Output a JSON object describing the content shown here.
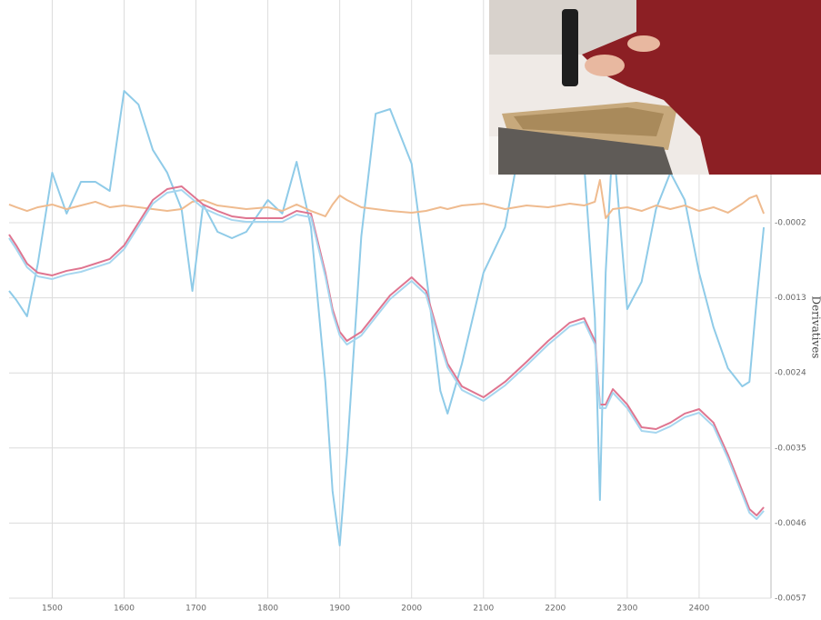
{
  "chart_data": {
    "type": "line",
    "y_label": "Derivatives",
    "x": [
      1440,
      1450,
      1465,
      1480,
      1500,
      1520,
      1540,
      1560,
      1580,
      1600,
      1620,
      1640,
      1660,
      1680,
      1695,
      1710,
      1730,
      1750,
      1770,
      1800,
      1820,
      1840,
      1860,
      1880,
      1890,
      1900,
      1910,
      1930,
      1950,
      1970,
      2000,
      2020,
      2040,
      2050,
      2070,
      2100,
      2130,
      2160,
      2190,
      2220,
      2240,
      2255,
      2262,
      2270,
      2280,
      2300,
      2320,
      2340,
      2360,
      2380,
      2400,
      2420,
      2440,
      2460,
      2470,
      2480,
      2490
    ],
    "xlim": [
      1440,
      2500
    ],
    "xticks": [
      1500,
      1600,
      1700,
      1800,
      1900,
      2000,
      2100,
      2200,
      2300,
      2400
    ],
    "ylim": [
      -0.0057,
      0.003063
    ],
    "yticks": [
      -0.0057,
      -0.0046,
      -0.0035,
      -0.0024,
      -0.0013,
      -0.0002
    ],
    "grid": true,
    "series": [
      {
        "color": "#8fcbe8",
        "values": [
          -0.001198,
          -0.001332,
          -0.001571,
          -0.000799,
          0.000533,
          -6.6e-05,
          0.0004,
          0.0004,
          0.000266,
          0.001731,
          0.001532,
          0.000866,
          0.000533,
          0,
          -0.001198,
          6.7e-05,
          -0.000333,
          -0.000426,
          -0.000333,
          0.000133,
          -6.6e-05,
          0.000693,
          -0.000266,
          -0.00253,
          -0.004128,
          -0.004927,
          -0.003596,
          -0.000399,
          0.001398,
          0.001465,
          0.000666,
          -0.000932,
          -0.002663,
          -0.002996,
          -0.002264,
          -0.000932,
          -0.000266,
          0.001465,
          0.002264,
          0.001731,
          0.000666,
          -0.001598,
          -0.004261,
          -0.000932,
          0.001065,
          -0.001465,
          -0.001065,
          0,
          0.000533,
          0.000133,
          -0.000932,
          -0.001731,
          -0.00233,
          -0.002597,
          -0.00253,
          -0.001332,
          -0.000266
        ]
      },
      {
        "color": "#efbb8f",
        "values": [
          6.7e-05,
          2.7e-05,
          -2.7e-05,
          2.7e-05,
          6.7e-05,
          0,
          5.3e-05,
          0.000107,
          2.7e-05,
          5.3e-05,
          2.7e-05,
          0,
          -2.7e-05,
          0,
          0.000107,
          0.000133,
          5.3e-05,
          2.7e-05,
          0,
          2.7e-05,
          -2.7e-05,
          6.7e-05,
          -2.7e-05,
          -0.000106,
          6.7e-05,
          0.0002,
          0.000133,
          2.7e-05,
          0,
          -2.7e-05,
          -5.3e-05,
          -2.7e-05,
          2.7e-05,
          0,
          5.3e-05,
          8e-05,
          0,
          5.3e-05,
          2.7e-05,
          8e-05,
          5.3e-05,
          0.000107,
          0.000426,
          -0.000133,
          0,
          2.7e-05,
          -2.7e-05,
          5.3e-05,
          0,
          5.3e-05,
          -2.7e-05,
          2.7e-05,
          -5.3e-05,
          8e-05,
          0.00016,
          0.0002,
          -6.6e-05
        ]
      },
      {
        "color": "#df7590",
        "values": [
          -0.000373,
          -0.000533,
          -0.000799,
          -0.000932,
          -0.000972,
          -0.000905,
          -0.000866,
          -0.000799,
          -0.000732,
          -0.000533,
          -0.0002,
          0.000133,
          0.000293,
          0.000333,
          0.0002,
          6.7e-05,
          -2.7e-05,
          -0.000106,
          -0.000133,
          -0.000133,
          -0.000133,
          -2.7e-05,
          -6.6e-05,
          -0.000932,
          -0.001465,
          -0.001798,
          -0.001931,
          -0.001798,
          -0.001531,
          -0.001265,
          -0.000999,
          -0.001198,
          -0.001931,
          -0.002264,
          -0.002597,
          -0.002757,
          -0.00253,
          -0.002237,
          -0.001931,
          -0.001665,
          -0.001598,
          -0.001931,
          -0.002863,
          -0.002863,
          -0.002637,
          -0.002863,
          -0.003196,
          -0.003223,
          -0.003129,
          -0.002996,
          -0.00293,
          -0.003129,
          -0.003596,
          -0.004128,
          -0.004395,
          -0.004488,
          -0.004368
        ]
      },
      {
        "color": "#a6d6ef",
        "values": [
          -0.000426,
          -0.000586,
          -0.000852,
          -0.000985,
          -0.001025,
          -0.000958,
          -0.000919,
          -0.000852,
          -0.000785,
          -0.000586,
          -0.000253,
          8e-05,
          0.00024,
          0.00028,
          0.000147,
          1.4e-05,
          -8e-05,
          -0.000159,
          -0.000186,
          -0.000186,
          -0.000186,
          -8e-05,
          -0.000119,
          -0.000985,
          -0.001518,
          -0.001851,
          -0.001984,
          -0.001851,
          -0.001584,
          -0.001318,
          -0.001052,
          -0.001251,
          -0.001984,
          -0.002317,
          -0.00265,
          -0.00281,
          -0.002583,
          -0.00229,
          -0.001984,
          -0.001718,
          -0.001651,
          -0.001984,
          -0.002916,
          -0.002916,
          -0.00269,
          -0.002916,
          -0.003249,
          -0.003276,
          -0.003182,
          -0.003049,
          -0.002983,
          -0.003182,
          -0.003649,
          -0.004181,
          -0.004448,
          -0.004541,
          -0.004421
        ]
      }
    ]
  }
}
